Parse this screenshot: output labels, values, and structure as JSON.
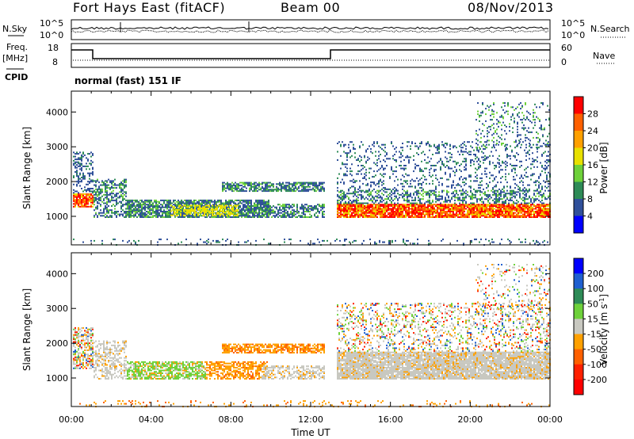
{
  "header": {
    "title": "Fort Hays East (fitACF)",
    "beam": "Beam 00",
    "date": "08/Nov/2013"
  },
  "noise_panel": {
    "left_label": "N.Sky",
    "right_label": "N.Search",
    "left_ticks": [
      "10^5",
      "10^0"
    ],
    "right_ticks": [
      "10^5",
      "10^0"
    ]
  },
  "freq_panel": {
    "left_label_1": "Freq.",
    "left_label_2": "[MHz]",
    "right_label": "Nave",
    "left_ticks": [
      "18",
      "8"
    ],
    "right_ticks": [
      "60",
      "0"
    ]
  },
  "cpid": {
    "label": "CPID",
    "program": "normal (fast) 151 IF"
  },
  "chart_data": [
    {
      "type": "heatmap",
      "name": "power",
      "ylabel": "Slant Range [km]",
      "y_ticks": [
        "4000",
        "3000",
        "2000",
        "1000"
      ],
      "y_range": [
        180,
        4600
      ],
      "x_range_hours": [
        0,
        24
      ],
      "colorbar_label": "Power [dB]",
      "colorbar_ticks": [
        "28",
        "24",
        "20",
        "16",
        "12",
        "8",
        "4"
      ],
      "colorbar_colors": [
        "#ff0000",
        "#ff6000",
        "#ffa000",
        "#e8e000",
        "#6ed13a",
        "#2e8b57",
        "#30509a",
        "#0000ff"
      ]
    },
    {
      "type": "heatmap",
      "name": "velocity",
      "ylabel": "Slant Range [km]",
      "y_ticks": [
        "4000",
        "3000",
        "2000",
        "1000"
      ],
      "y_range": [
        180,
        4600
      ],
      "x_range_hours": [
        0,
        24
      ],
      "xlabel": "Time UT",
      "x_ticks": [
        "00:00",
        "04:00",
        "08:00",
        "12:00",
        "16:00",
        "20:00",
        "00:00"
      ],
      "colorbar_label_1": "Velocity",
      "colorbar_label_2": "[m s",
      "colorbar_label_sup": "-1",
      "colorbar_label_3": "]",
      "colorbar_ticks": [
        "200",
        "100",
        "50",
        "15",
        "-15",
        "-50",
        "-100",
        "-200"
      ],
      "colorbar_colors": [
        "#0000ff",
        "#1f5fd0",
        "#2e8b57",
        "#6ed13a",
        "#c8c8c0",
        "#ffa000",
        "#ff6000",
        "#ff2000",
        "#ff0000"
      ]
    }
  ]
}
